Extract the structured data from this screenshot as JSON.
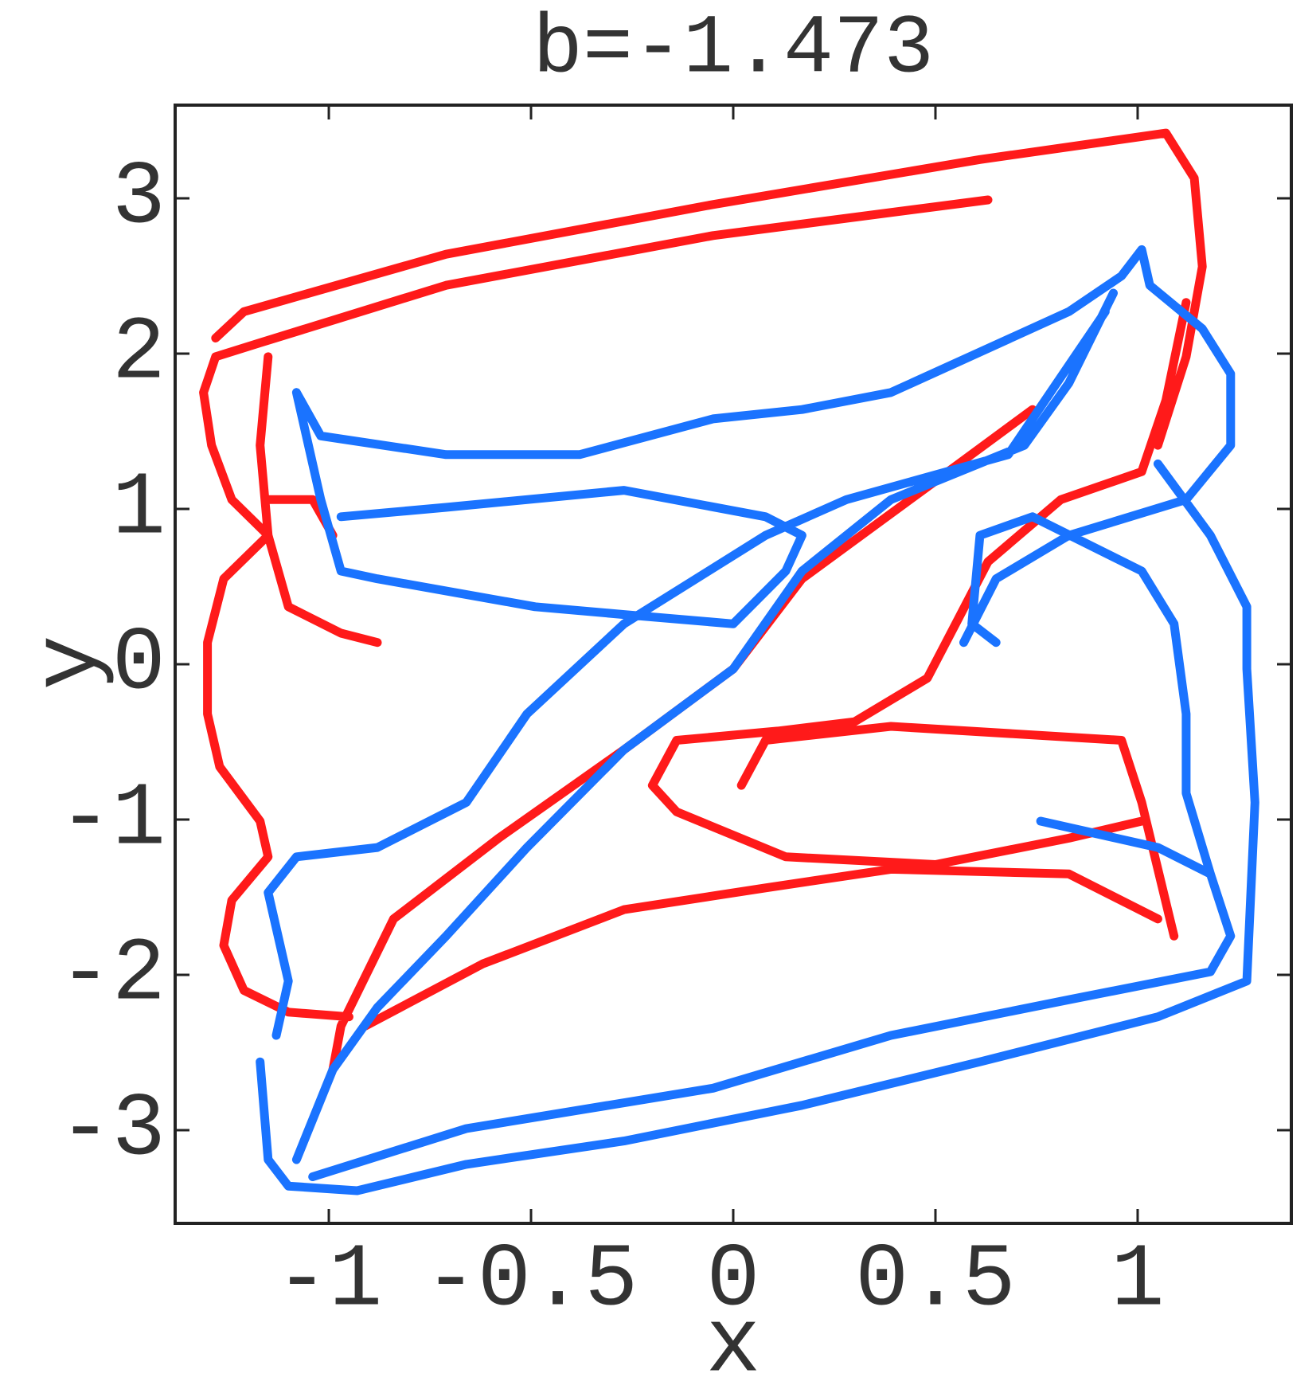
{
  "chart_data": {
    "type": "line",
    "title": "b=-1.473",
    "x_label": "x",
    "y_label": "y",
    "xlim": [
      -1.38,
      1.38
    ],
    "ylim": [
      -3.6,
      3.6
    ],
    "xticks": [
      -1,
      -0.5,
      0,
      0.5,
      1
    ],
    "yticks": [
      -3,
      -2,
      -1,
      0,
      1,
      2,
      3
    ],
    "series": [
      {
        "color": "#ff1a1a",
        "x": [
          0.63,
          -0.05,
          -0.71,
          -1.17,
          -1.28,
          -1.31,
          -1.29,
          -1.24,
          -1.15,
          -1.26,
          -1.3,
          -1.3,
          -1.27,
          -1.17,
          -1.15,
          -1.24,
          -1.26,
          -1.21,
          -1.1,
          -0.95,
          null,
          1.05,
          1.12,
          1.16,
          1.14,
          1.07,
          0.61,
          -0.05,
          -0.71,
          -1.21,
          -1.28,
          null,
          -1.15,
          -1.17,
          -1.15,
          -1.1,
          -0.97,
          -0.88,
          null,
          -1.15,
          -1.04,
          -0.99,
          null,
          0.74,
          0.5,
          0.17,
          0,
          -0.27,
          -0.58,
          -0.84,
          -0.97,
          -0.99,
          null,
          1.12,
          1.07,
          1.01,
          0.81,
          0.63,
          0.55,
          0.48,
          0.3,
          0.11,
          -0.14,
          -0.2,
          -0.14,
          0.13,
          0.5,
          0.83,
          1.01,
          null,
          -0.91,
          -0.62,
          -0.27,
          0.08,
          0.39,
          0.83,
          1.05,
          null,
          0.02,
          0.08,
          0.39,
          0.96,
          1.01,
          1.09
        ],
        "values": [
          2.99,
          2.76,
          2.44,
          2.07,
          1.98,
          1.75,
          1.41,
          1.06,
          0.83,
          0.55,
          0.14,
          -0.32,
          -0.66,
          -1.01,
          -1.24,
          -1.52,
          -1.81,
          -2.1,
          -2.24,
          -2.27,
          null,
          1.41,
          1.98,
          2.56,
          3.13,
          3.42,
          3.25,
          2.96,
          2.64,
          2.27,
          2.1,
          null,
          1.98,
          1.41,
          0.83,
          0.37,
          0.2,
          0.14,
          null,
          1.06,
          1.06,
          0.83,
          null,
          1.64,
          1.18,
          0.55,
          -0.03,
          -0.55,
          -1.12,
          -1.64,
          -2.33,
          -2.61,
          null,
          2.33,
          1.7,
          1.24,
          1.06,
          0.66,
          0.26,
          -0.09,
          -0.37,
          -0.43,
          -0.49,
          -0.78,
          -0.95,
          -1.24,
          -1.29,
          -1.12,
          -1.01,
          null,
          -2.33,
          -1.93,
          -1.58,
          -1.44,
          -1.32,
          -1.35,
          -1.64,
          null,
          -0.78,
          -0.49,
          -0.4,
          -0.49,
          -0.89,
          -1.75
        ]
      },
      {
        "color": "#1a73ff",
        "x": [
          -1.08,
          -1.02,
          -0.71,
          -0.38,
          -0.05,
          0.17,
          0.39,
          0.83,
          0.96,
          1.01,
          1.03,
          1.16,
          1.23,
          1.23,
          1.12,
          0.83,
          0.65,
          0.57,
          null,
          -1.08,
          -1.02,
          -0.97,
          -0.88,
          -0.49,
          -0.27,
          0,
          0.13,
          0.17,
          0.08,
          -0.27,
          -0.71,
          -0.97,
          null,
          0.94,
          0.83,
          0.72,
          0.39,
          0.17,
          0,
          -0.27,
          -0.51,
          -0.71,
          -0.88,
          -0.99,
          -1.08,
          null,
          0.92,
          0.68,
          0.28,
          0.08,
          -0.27,
          -0.51,
          -0.66,
          -0.88,
          -1.08,
          -1.15,
          -1.1,
          -1.13,
          null,
          -1.17,
          -1.15,
          -1.1,
          -0.93,
          -0.66,
          -0.27,
          0.17,
          0.61,
          1.05,
          1.27,
          1.29,
          1.27,
          1.27,
          1.18,
          1.05,
          null,
          -1.04,
          -0.66,
          -0.05,
          0.39,
          0.83,
          1.18,
          1.23,
          1.18,
          1.12,
          1.12,
          1.09,
          1.01,
          0.74,
          0.61,
          0.59,
          0.65,
          null,
          0.76,
          1.05,
          1.18
        ],
        "values": [
          1.75,
          1.47,
          1.35,
          1.35,
          1.58,
          1.64,
          1.75,
          2.27,
          2.5,
          2.67,
          2.44,
          2.16,
          1.87,
          1.41,
          1.06,
          0.83,
          0.55,
          0.14,
          null,
          1.75,
          1.06,
          0.6,
          0.55,
          0.37,
          0.32,
          0.26,
          0.6,
          0.83,
          0.95,
          1.12,
          1.01,
          0.95,
          null,
          2.39,
          1.81,
          1.41,
          1.06,
          0.6,
          -0.03,
          -0.55,
          -1.18,
          -1.75,
          -2.21,
          -2.61,
          -3.19,
          null,
          2.27,
          1.35,
          1.06,
          0.83,
          0.26,
          -0.32,
          -0.89,
          -1.18,
          -1.24,
          -1.47,
          -2.04,
          -2.39,
          null,
          -2.56,
          -3.19,
          -3.36,
          -3.39,
          -3.22,
          -3.07,
          -2.84,
          -2.56,
          -2.27,
          -2.04,
          -0.89,
          -0.03,
          0.37,
          0.83,
          1.29,
          null,
          -3.3,
          -2.99,
          -2.73,
          -2.39,
          -2.16,
          -1.98,
          -1.75,
          -1.35,
          -0.83,
          -0.32,
          0.26,
          0.6,
          0.95,
          0.83,
          0.26,
          0.14,
          null,
          -1.01,
          -1.18,
          -1.35
        ]
      }
    ]
  }
}
